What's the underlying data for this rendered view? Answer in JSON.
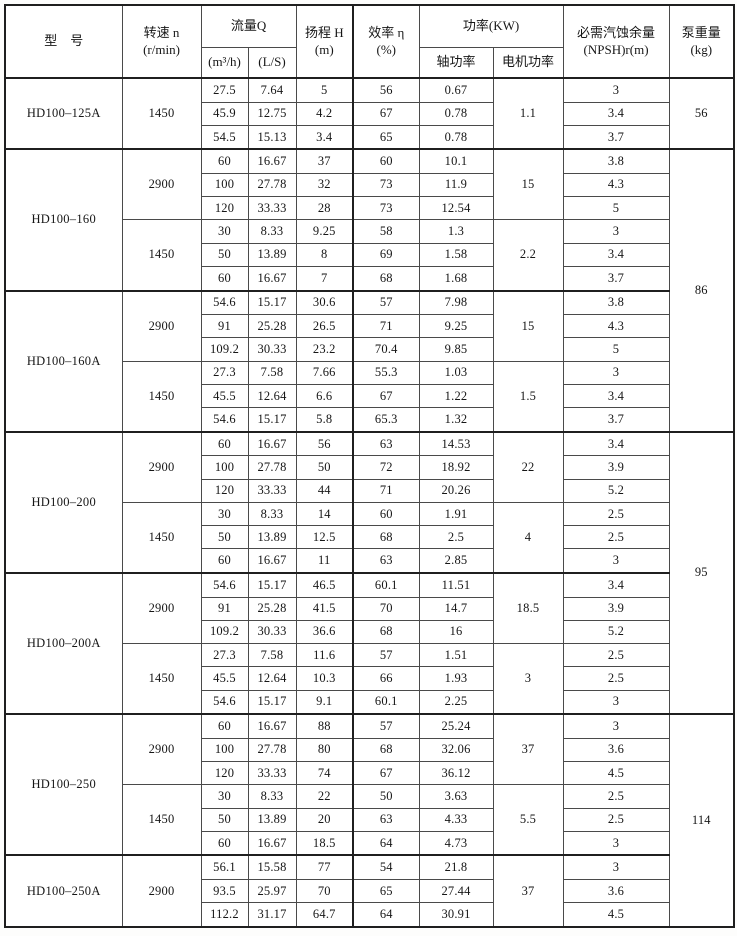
{
  "page": {
    "background": "#fdfdfc",
    "ink": "#161616",
    "grid_line": "#4a4a4a",
    "heavy_line": "#1f1f1f"
  },
  "table": {
    "header": {
      "model": "型　号",
      "speed": "转速 n\n(r/min)",
      "flow": "流量Q",
      "flow_m3h": "(m³/h)",
      "flow_ls": "(L/S)",
      "head": "扬程 H\n(m)",
      "efficiency": "效率 η\n(%)",
      "power": "功率(KW)",
      "shaft_power": "轴功率",
      "motor_power": "电机功率",
      "npsh": "必需汽蚀余量\n(NPSH)r(m)",
      "weight": "泵重量\n(kg)"
    },
    "sections": [
      {
        "model": "HD100–125A",
        "weight": {
          "value": "56",
          "rows": 3
        },
        "blocks": [
          {
            "speed": "1450",
            "motor": "1.1",
            "rows": [
              {
                "m3h": "27.5",
                "ls": "7.64",
                "head": "5",
                "eff": "56",
                "shaft": "0.67",
                "npsh": "3"
              },
              {
                "m3h": "45.9",
                "ls": "12.75",
                "head": "4.2",
                "eff": "67",
                "shaft": "0.78",
                "npsh": "3.4"
              },
              {
                "m3h": "54.5",
                "ls": "15.13",
                "head": "3.4",
                "eff": "65",
                "shaft": "0.78",
                "npsh": "3.7"
              }
            ]
          }
        ]
      },
      {
        "model": "HD100–160",
        "weight": {
          "value": "86",
          "rows": 12
        },
        "blocks": [
          {
            "speed": "2900",
            "motor": "15",
            "rows": [
              {
                "m3h": "60",
                "ls": "16.67",
                "head": "37",
                "eff": "60",
                "shaft": "10.1",
                "npsh": "3.8"
              },
              {
                "m3h": "100",
                "ls": "27.78",
                "head": "32",
                "eff": "73",
                "shaft": "11.9",
                "npsh": "4.3"
              },
              {
                "m3h": "120",
                "ls": "33.33",
                "head": "28",
                "eff": "73",
                "shaft": "12.54",
                "npsh": "5"
              }
            ]
          },
          {
            "speed": "1450",
            "motor": "2.2",
            "rows": [
              {
                "m3h": "30",
                "ls": "8.33",
                "head": "9.25",
                "eff": "58",
                "shaft": "1.3",
                "npsh": "3"
              },
              {
                "m3h": "50",
                "ls": "13.89",
                "head": "8",
                "eff": "69",
                "shaft": "1.58",
                "npsh": "3.4"
              },
              {
                "m3h": "60",
                "ls": "16.67",
                "head": "7",
                "eff": "68",
                "shaft": "1.68",
                "npsh": "3.7"
              }
            ]
          }
        ]
      },
      {
        "model": "HD100–160A",
        "blocks": [
          {
            "speed": "2900",
            "motor": "15",
            "rows": [
              {
                "m3h": "54.6",
                "ls": "15.17",
                "head": "30.6",
                "eff": "57",
                "shaft": "7.98",
                "npsh": "3.8"
              },
              {
                "m3h": "91",
                "ls": "25.28",
                "head": "26.5",
                "eff": "71",
                "shaft": "9.25",
                "npsh": "4.3"
              },
              {
                "m3h": "109.2",
                "ls": "30.33",
                "head": "23.2",
                "eff": "70.4",
                "shaft": "9.85",
                "npsh": "5"
              }
            ]
          },
          {
            "speed": "1450",
            "motor": "1.5",
            "rows": [
              {
                "m3h": "27.3",
                "ls": "7.58",
                "head": "7.66",
                "eff": "55.3",
                "shaft": "1.03",
                "npsh": "3"
              },
              {
                "m3h": "45.5",
                "ls": "12.64",
                "head": "6.6",
                "eff": "67",
                "shaft": "1.22",
                "npsh": "3.4"
              },
              {
                "m3h": "54.6",
                "ls": "15.17",
                "head": "5.8",
                "eff": "65.3",
                "shaft": "1.32",
                "npsh": "3.7"
              }
            ]
          }
        ]
      },
      {
        "model": "HD100–200",
        "weight": {
          "value": "95",
          "rows": 12
        },
        "blocks": [
          {
            "speed": "2900",
            "motor": "22",
            "rows": [
              {
                "m3h": "60",
                "ls": "16.67",
                "head": "56",
                "eff": "63",
                "shaft": "14.53",
                "npsh": "3.4"
              },
              {
                "m3h": "100",
                "ls": "27.78",
                "head": "50",
                "eff": "72",
                "shaft": "18.92",
                "npsh": "3.9"
              },
              {
                "m3h": "120",
                "ls": "33.33",
                "head": "44",
                "eff": "71",
                "shaft": "20.26",
                "npsh": "5.2"
              }
            ]
          },
          {
            "speed": "1450",
            "motor": "4",
            "rows": [
              {
                "m3h": "30",
                "ls": "8.33",
                "head": "14",
                "eff": "60",
                "shaft": "1.91",
                "npsh": "2.5"
              },
              {
                "m3h": "50",
                "ls": "13.89",
                "head": "12.5",
                "eff": "68",
                "shaft": "2.5",
                "npsh": "2.5"
              },
              {
                "m3h": "60",
                "ls": "16.67",
                "head": "11",
                "eff": "63",
                "shaft": "2.85",
                "npsh": "3"
              }
            ]
          }
        ]
      },
      {
        "model": "HD100–200A",
        "blocks": [
          {
            "speed": "2900",
            "motor": "18.5",
            "rows": [
              {
                "m3h": "54.6",
                "ls": "15.17",
                "head": "46.5",
                "eff": "60.1",
                "shaft": "11.51",
                "npsh": "3.4"
              },
              {
                "m3h": "91",
                "ls": "25.28",
                "head": "41.5",
                "eff": "70",
                "shaft": "14.7",
                "npsh": "3.9"
              },
              {
                "m3h": "109.2",
                "ls": "30.33",
                "head": "36.6",
                "eff": "68",
                "shaft": "16",
                "npsh": "5.2"
              }
            ]
          },
          {
            "speed": "1450",
            "motor": "3",
            "rows": [
              {
                "m3h": "27.3",
                "ls": "7.58",
                "head": "11.6",
                "eff": "57",
                "shaft": "1.51",
                "npsh": "2.5"
              },
              {
                "m3h": "45.5",
                "ls": "12.64",
                "head": "10.3",
                "eff": "66",
                "shaft": "1.93",
                "npsh": "2.5"
              },
              {
                "m3h": "54.6",
                "ls": "15.17",
                "head": "9.1",
                "eff": "60.1",
                "shaft": "2.25",
                "npsh": "3"
              }
            ]
          }
        ]
      },
      {
        "model": "HD100–250",
        "weight": {
          "value": "114",
          "rows": 9
        },
        "blocks": [
          {
            "speed": "2900",
            "motor": "37",
            "rows": [
              {
                "m3h": "60",
                "ls": "16.67",
                "head": "88",
                "eff": "57",
                "shaft": "25.24",
                "npsh": "3"
              },
              {
                "m3h": "100",
                "ls": "27.78",
                "head": "80",
                "eff": "68",
                "shaft": "32.06",
                "npsh": "3.6"
              },
              {
                "m3h": "120",
                "ls": "33.33",
                "head": "74",
                "eff": "67",
                "shaft": "36.12",
                "npsh": "4.5"
              }
            ]
          },
          {
            "speed": "1450",
            "motor": "5.5",
            "rows": [
              {
                "m3h": "30",
                "ls": "8.33",
                "head": "22",
                "eff": "50",
                "shaft": "3.63",
                "npsh": "2.5"
              },
              {
                "m3h": "50",
                "ls": "13.89",
                "head": "20",
                "eff": "63",
                "shaft": "4.33",
                "npsh": "2.5"
              },
              {
                "m3h": "60",
                "ls": "16.67",
                "head": "18.5",
                "eff": "64",
                "shaft": "4.73",
                "npsh": "3"
              }
            ]
          }
        ]
      },
      {
        "model": "HD100–250A",
        "blocks": [
          {
            "speed": "2900",
            "motor": "37",
            "rows": [
              {
                "m3h": "56.1",
                "ls": "15.58",
                "head": "77",
                "eff": "54",
                "shaft": "21.8",
                "npsh": "3"
              },
              {
                "m3h": "93.5",
                "ls": "25.97",
                "head": "70",
                "eff": "65",
                "shaft": "27.44",
                "npsh": "3.6"
              },
              {
                "m3h": "112.2",
                "ls": "31.17",
                "head": "64.7",
                "eff": "64",
                "shaft": "30.91",
                "npsh": "4.5"
              }
            ]
          }
        ]
      }
    ]
  }
}
